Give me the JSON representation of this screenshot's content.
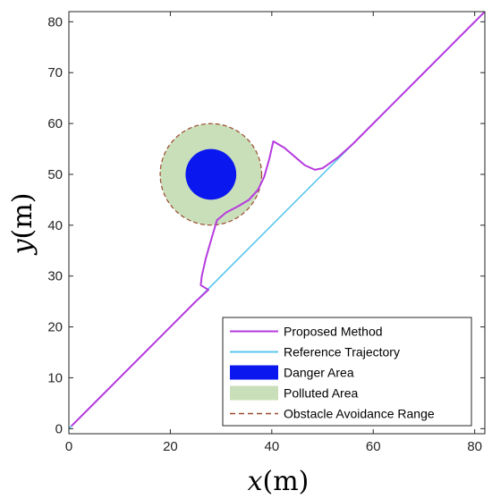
{
  "chart_data": {
    "type": "line",
    "title": "",
    "xlabel": {
      "var": "x",
      "unit": "(m)"
    },
    "ylabel": {
      "var": "y",
      "unit": "(m)"
    },
    "xlim": [
      0,
      82
    ],
    "ylim": [
      -1,
      82
    ],
    "xticks": [
      0,
      20,
      40,
      60,
      80
    ],
    "yticks": [
      0,
      10,
      20,
      30,
      40,
      50,
      60,
      70,
      80
    ],
    "grid": false,
    "legend_position": "bottom-right",
    "series": [
      {
        "name": "Proposed Method",
        "color": "#b63bde",
        "points": [
          [
            0.5,
            0.5
          ],
          [
            5,
            5
          ],
          [
            10,
            10
          ],
          [
            15,
            15
          ],
          [
            20,
            20
          ],
          [
            25,
            25
          ],
          [
            27.5,
            27.3
          ],
          [
            26,
            28.2
          ],
          [
            26.2,
            30
          ],
          [
            27,
            33.5
          ],
          [
            28.3,
            38
          ],
          [
            29.2,
            41
          ],
          [
            31,
            42.5
          ],
          [
            33.5,
            43.8
          ],
          [
            35.5,
            45
          ],
          [
            37.3,
            47
          ],
          [
            38.5,
            49.5
          ],
          [
            39.5,
            53
          ],
          [
            40.3,
            56.5
          ],
          [
            42.5,
            55.2
          ],
          [
            44.5,
            53.5
          ],
          [
            46.5,
            51.8
          ],
          [
            48.5,
            50.9
          ],
          [
            50,
            51.2
          ],
          [
            53,
            53.3
          ],
          [
            56,
            56
          ],
          [
            60,
            60
          ],
          [
            65,
            65
          ],
          [
            70,
            70
          ],
          [
            75,
            75
          ],
          [
            80,
            80
          ],
          [
            82,
            82
          ]
        ]
      },
      {
        "name": "Reference Trajectory",
        "color": "#5bc6ee",
        "points": [
          [
            0,
            0
          ],
          [
            82,
            82
          ]
        ]
      }
    ],
    "areas": [
      {
        "name": "Danger Area",
        "color": "#0a17ee",
        "center": [
          28,
          50
        ],
        "radius": 5
      },
      {
        "name": "Polluted Area",
        "color": "#c9dfba",
        "center": [
          28,
          50
        ],
        "radius": 10
      },
      {
        "name": "Obstacle Avoidance Range",
        "color": "#9a4b2f",
        "center": [
          28,
          50
        ],
        "radius": 10,
        "style": "dashed"
      }
    ]
  }
}
